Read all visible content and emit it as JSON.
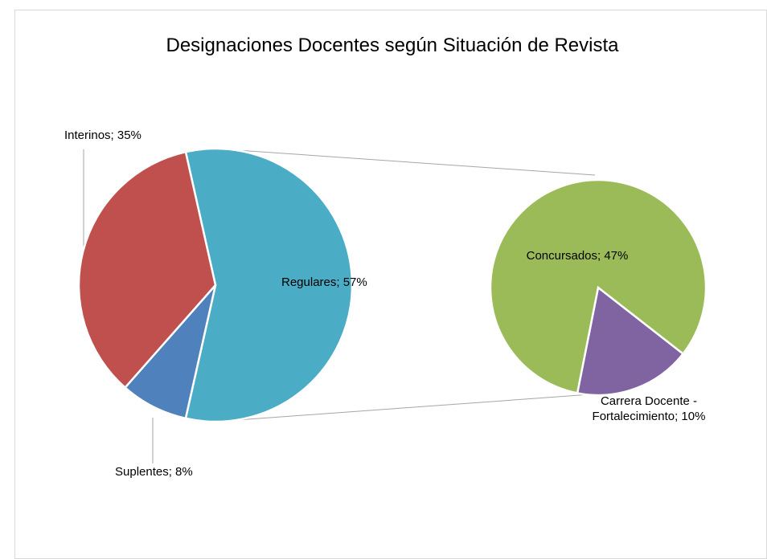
{
  "chart_data": {
    "type": "pie-of-pie",
    "title": "Designaciones Docentes según Situación de Revista",
    "series": [
      {
        "values": [
          57,
          8,
          35
        ],
        "value_labels": [
          "Regulares; 57%",
          "Suplentes; 8%",
          "Interinos; 35%"
        ],
        "colors": [
          "#4bacc6",
          "#4f81bd",
          "#c0504d"
        ]
      },
      {
        "values": [
          10,
          47
        ],
        "value_labels": [
          "Carrera Docente -\nFortalecimiento; 10%",
          "Concursados; 47%"
        ],
        "colors": [
          "#8064a2",
          "#9bbb59"
        ]
      }
    ]
  }
}
